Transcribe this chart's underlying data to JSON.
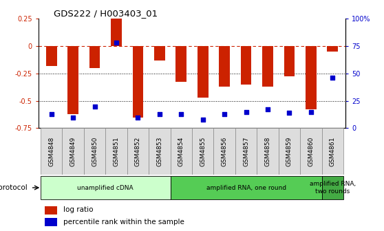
{
  "title": "GDS222 / H003403_01",
  "samples": [
    "GSM4848",
    "GSM4849",
    "GSM4850",
    "GSM4851",
    "GSM4852",
    "GSM4853",
    "GSM4854",
    "GSM4855",
    "GSM4856",
    "GSM4857",
    "GSM4858",
    "GSM4859",
    "GSM4860",
    "GSM4861"
  ],
  "log_ratio": [
    -0.18,
    -0.62,
    -0.2,
    0.26,
    -0.65,
    -0.13,
    -0.33,
    -0.47,
    -0.37,
    -0.35,
    -0.37,
    -0.28,
    -0.58,
    -0.05
  ],
  "percentile": [
    13,
    10,
    20,
    78,
    10,
    13,
    13,
    8,
    13,
    15,
    17,
    14,
    15,
    46
  ],
  "ylim_left": [
    -0.75,
    0.25
  ],
  "ylim_right": [
    0,
    100
  ],
  "bar_color": "#cc2200",
  "dot_color": "#0000cc",
  "dashed_color": "#cc2200",
  "protocol_groups": [
    {
      "label": "unamplified cDNA",
      "start": 0,
      "end": 5,
      "color": "#ccffcc"
    },
    {
      "label": "amplified RNA, one round",
      "start": 6,
      "end": 12,
      "color": "#55cc55"
    },
    {
      "label": "amplified RNA,\ntwo rounds",
      "start": 13,
      "end": 13,
      "color": "#44aa44"
    }
  ],
  "legend_items": [
    {
      "color": "#cc2200",
      "label": "log ratio"
    },
    {
      "color": "#0000cc",
      "label": "percentile rank within the sample"
    }
  ],
  "protocol_label": "protocol"
}
